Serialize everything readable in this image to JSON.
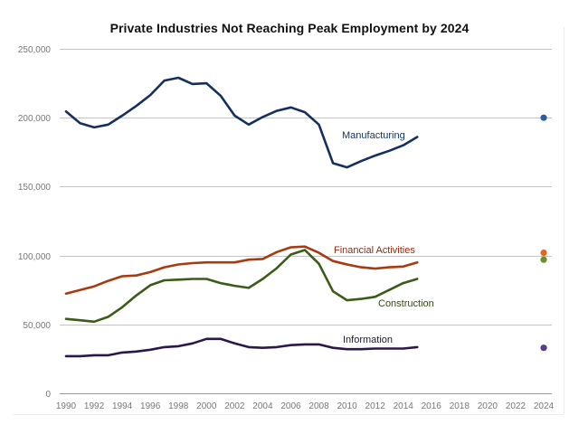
{
  "chart_data": {
    "type": "line",
    "title": "Private Industries Not Reaching Peak Employment by 2024",
    "xlabel": "",
    "ylabel": "",
    "xlim": [
      1990,
      2024
    ],
    "ylim": [
      0,
      250000
    ],
    "x_ticks": [
      "1990",
      "1992",
      "1994",
      "1996",
      "1998",
      "2000",
      "2002",
      "2004",
      "2006",
      "2008",
      "2010",
      "2012",
      "2014",
      "2016",
      "2018",
      "2020",
      "2022",
      "2024"
    ],
    "y_ticks": [
      {
        "value": 0,
        "label": "0"
      },
      {
        "value": 50000,
        "label": "50,000"
      },
      {
        "value": 100000,
        "label": "100,000"
      },
      {
        "value": 150000,
        "label": "150,000"
      },
      {
        "value": 200000,
        "label": "200,000"
      },
      {
        "value": 250000,
        "label": "250,000"
      }
    ],
    "grid": true,
    "legend": "inline-labels",
    "x": [
      1990,
      1991,
      1992,
      1993,
      1994,
      1995,
      1996,
      1997,
      1998,
      1999,
      2000,
      2001,
      2002,
      2003,
      2004,
      2005,
      2006,
      2007,
      2008,
      2009,
      2010,
      2011,
      2012,
      2013,
      2014,
      2015
    ],
    "series": [
      {
        "name": "Manufacturing",
        "color": "#15305e",
        "label_color": "#15305e",
        "marker_color": "#2c5ea8",
        "values": [
          204500,
          196000,
          193000,
          195000,
          201500,
          208500,
          216500,
          227000,
          229000,
          224500,
          225000,
          216000,
          201500,
          195000,
          200500,
          205000,
          207500,
          204000,
          195000,
          167000,
          164000,
          168500,
          172500,
          176000,
          180000,
          186000
        ],
        "projection_2024": 200000
      },
      {
        "name": "Financial Activities",
        "color": "#a83a10",
        "label_color": "#8e2a14",
        "marker_color": "#e2661f",
        "values": [
          72400,
          75000,
          77600,
          81600,
          85000,
          85500,
          88000,
          91500,
          93500,
          94500,
          95000,
          95000,
          95000,
          97000,
          97500,
          102500,
          106000,
          106500,
          102000,
          96000,
          93500,
          91500,
          90500,
          91500,
          92000,
          95000
        ],
        "projection_2024": 102000
      },
      {
        "name": "Construction",
        "color": "#3b5c17",
        "label_color": "#2f4a12",
        "marker_color": "#6a8f31",
        "values": [
          54000,
          53000,
          52000,
          55500,
          62500,
          71000,
          78500,
          82000,
          82500,
          83000,
          83000,
          80000,
          78000,
          76500,
          83000,
          90800,
          100700,
          104000,
          94000,
          74000,
          67500,
          68500,
          70000,
          75000,
          80000,
          83000
        ],
        "projection_2024": 97000
      },
      {
        "name": "Information",
        "color": "#2a1848",
        "label_color": "#1e1a2e",
        "marker_color": "#5a3a8c",
        "values": [
          27000,
          27000,
          27600,
          27600,
          29600,
          30300,
          31600,
          33500,
          34200,
          36200,
          39500,
          39500,
          36200,
          33500,
          33000,
          33500,
          35000,
          35500,
          35500,
          33000,
          32000,
          32000,
          32500,
          32500,
          32500,
          33500
        ],
        "projection_2024": 33000
      }
    ]
  }
}
